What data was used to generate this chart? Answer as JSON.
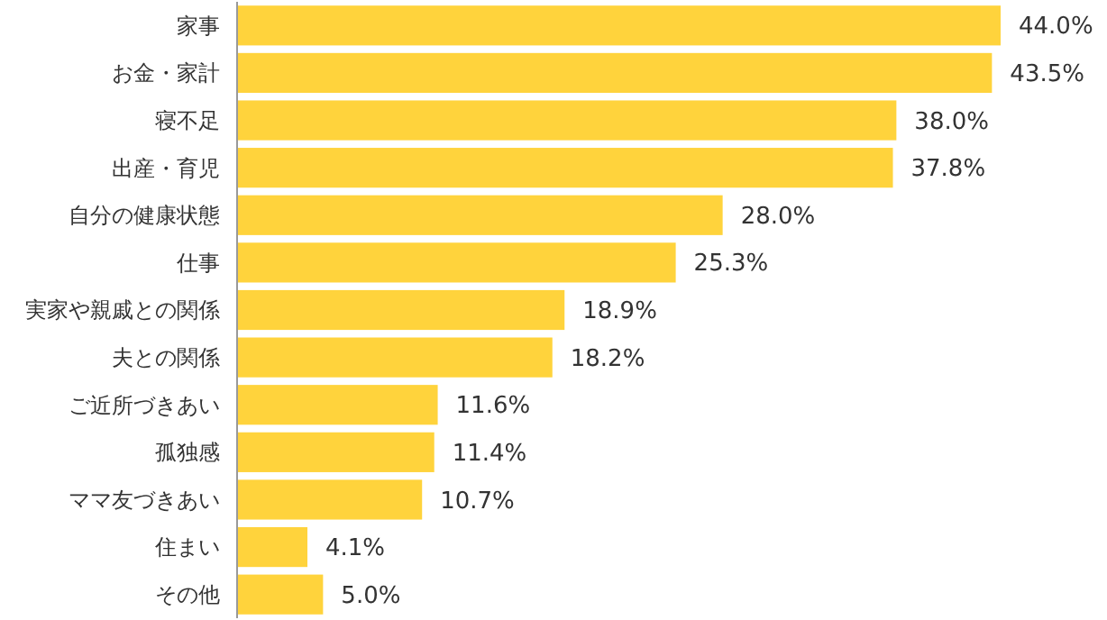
{
  "chart_data": {
    "type": "bar",
    "orientation": "horizontal",
    "data_labels": true,
    "categories": [
      "家事",
      "お金・家計",
      "寝不足",
      "出産・育児",
      "自分の健康状態",
      "仕事",
      "実家や親戚との関係",
      "夫との関係",
      "ご近所づきあい",
      "孤独感",
      "ママ友づきあい",
      "住まい",
      "その他"
    ],
    "values": [
      44.0,
      43.5,
      38.0,
      37.8,
      28.0,
      25.3,
      18.9,
      18.2,
      11.6,
      11.4,
      10.7,
      4.1,
      5.0
    ],
    "value_labels": [
      "44.0%",
      "43.5%",
      "38.0%",
      "37.8%",
      "28.0%",
      "25.3%",
      "18.9%",
      "18.2%",
      "11.6%",
      "11.4%",
      "10.7%",
      "4.1%",
      "5.0%"
    ],
    "color": "#ffd33c"
  }
}
